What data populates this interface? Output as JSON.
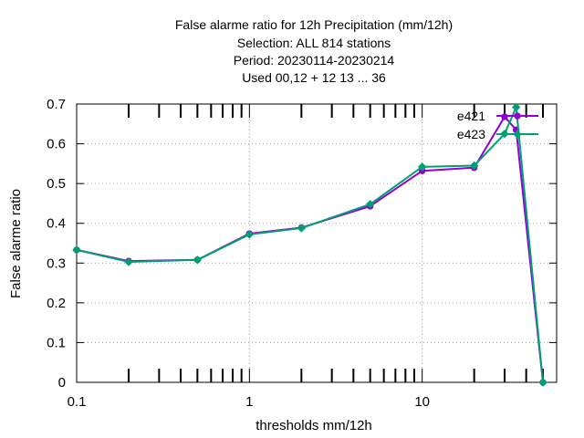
{
  "chart_data": {
    "type": "line",
    "title_lines": [
      "False alarme ratio  for 12h Precipitation (mm/12h)",
      "Selection: ALL    814 stations",
      "Period: 20230114-20230214",
      "Used  00,12  + 12 13 ... 36"
    ],
    "xlabel": "thresholds mm/12h",
    "ylabel": "False alarme ratio",
    "x_scale": "log",
    "xlim": [
      0.1,
      60
    ],
    "ylim": [
      0,
      0.7
    ],
    "x_ticks": [
      "0.1",
      "1",
      "10"
    ],
    "y_ticks": [
      "0",
      "0.1",
      "0.2",
      "0.3",
      "0.4",
      "0.5",
      "0.6",
      "0.7"
    ],
    "grid": true,
    "legend_position": "top-right",
    "series": [
      {
        "name": "e421",
        "color": "#9400d3",
        "marker": "circle",
        "x": [
          0.1,
          0.2,
          0.5,
          1,
          2,
          5,
          10,
          20,
          30,
          35,
          50
        ],
        "y": [
          0.333,
          0.305,
          0.308,
          0.374,
          0.389,
          0.443,
          0.532,
          0.54,
          0.668,
          0.635,
          0.0
        ]
      },
      {
        "name": "e423",
        "color": "#009e73",
        "marker": "diamond",
        "x": [
          0.1,
          0.2,
          0.5,
          1,
          2,
          5,
          10,
          20,
          30,
          35,
          50
        ],
        "y": [
          0.333,
          0.303,
          0.308,
          0.372,
          0.388,
          0.448,
          0.542,
          0.545,
          0.625,
          0.692,
          0.0
        ]
      }
    ]
  }
}
